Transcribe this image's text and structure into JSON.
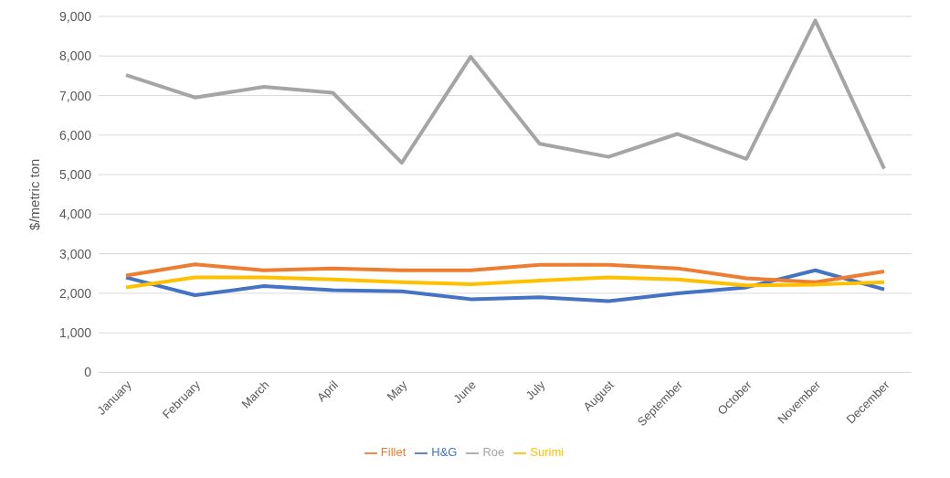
{
  "chart_data": {
    "type": "line",
    "ylabel": "$/metric ton",
    "categories": [
      "January",
      "February",
      "March",
      "April",
      "May",
      "June",
      "July",
      "August",
      "September",
      "October",
      "November",
      "December"
    ],
    "series": [
      {
        "name": "H&G",
        "color": "#4472c4",
        "values": [
          2400,
          1950,
          2180,
          2080,
          2050,
          1850,
          1900,
          1800,
          2000,
          2150,
          2580,
          2100
        ]
      },
      {
        "name": "Fillet",
        "color": "#ed7d31",
        "values": [
          2450,
          2730,
          2580,
          2630,
          2580,
          2580,
          2720,
          2720,
          2630,
          2380,
          2280,
          2550
        ]
      },
      {
        "name": "Roe",
        "color": "#a5a5a5",
        "values": [
          7520,
          6950,
          7220,
          7070,
          5300,
          7980,
          5780,
          5450,
          6030,
          5400,
          8900,
          5150
        ]
      },
      {
        "name": "Surimi",
        "color": "#ffc000",
        "values": [
          2150,
          2400,
          2400,
          2350,
          2280,
          2230,
          2320,
          2400,
          2350,
          2200,
          2220,
          2280
        ]
      }
    ],
    "ylim": [
      0,
      9000
    ],
    "yticks": [
      {
        "value": 0,
        "label": "0"
      },
      {
        "value": 1000,
        "label": "1,000"
      },
      {
        "value": 2000,
        "label": "2,000"
      },
      {
        "value": 3000,
        "label": "3,000"
      },
      {
        "value": 4000,
        "label": "4,000"
      },
      {
        "value": 5000,
        "label": "5,000"
      },
      {
        "value": 6000,
        "label": "6,000"
      },
      {
        "value": 7000,
        "label": "7,000"
      },
      {
        "value": 8000,
        "label": "8,000"
      },
      {
        "value": 9000,
        "label": "9,000"
      }
    ],
    "grid": "y",
    "legend": "bottom",
    "marker": "none",
    "line_style": "solid"
  }
}
